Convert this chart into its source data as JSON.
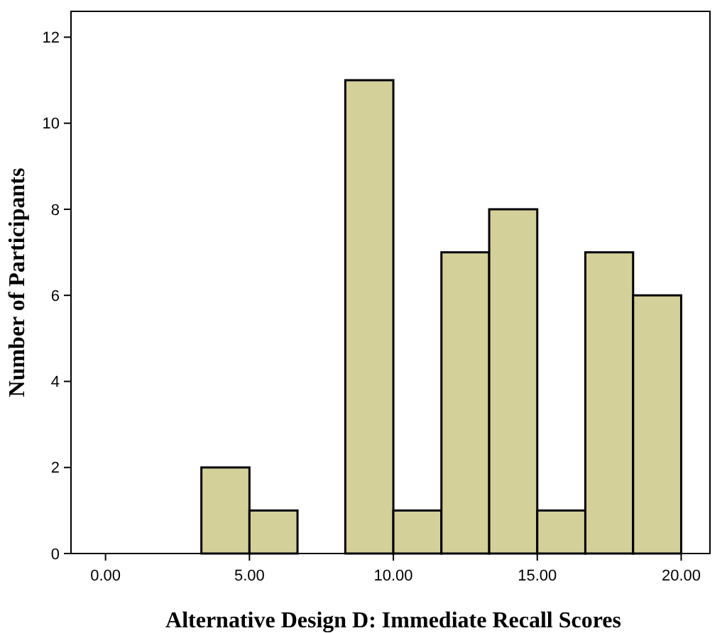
{
  "chart_data": {
    "type": "histogram",
    "xlabel": "Alternative Design D: Immediate Recall Scores",
    "ylabel": "Number of Participants",
    "bins": [
      0,
      1.67,
      3.33,
      5,
      6.67,
      8.33,
      10,
      11.67,
      13.33,
      15,
      16.67,
      18.33,
      20
    ],
    "values": [
      0,
      0,
      2,
      1,
      0,
      11,
      1,
      7,
      8,
      1,
      7,
      6
    ],
    "color": "#d4d09a",
    "xlim": [
      -1.2,
      21
    ],
    "xticks": [
      {
        "value": 0,
        "label": "0.00"
      },
      {
        "value": 5,
        "label": "5.00"
      },
      {
        "value": 10,
        "label": "10.00"
      },
      {
        "value": 15,
        "label": "15.00"
      },
      {
        "value": 20,
        "label": "20.00"
      }
    ],
    "ylim": [
      0,
      12.6
    ],
    "yticks": [
      0,
      2,
      4,
      6,
      8,
      10,
      12
    ],
    "grid": false
  }
}
